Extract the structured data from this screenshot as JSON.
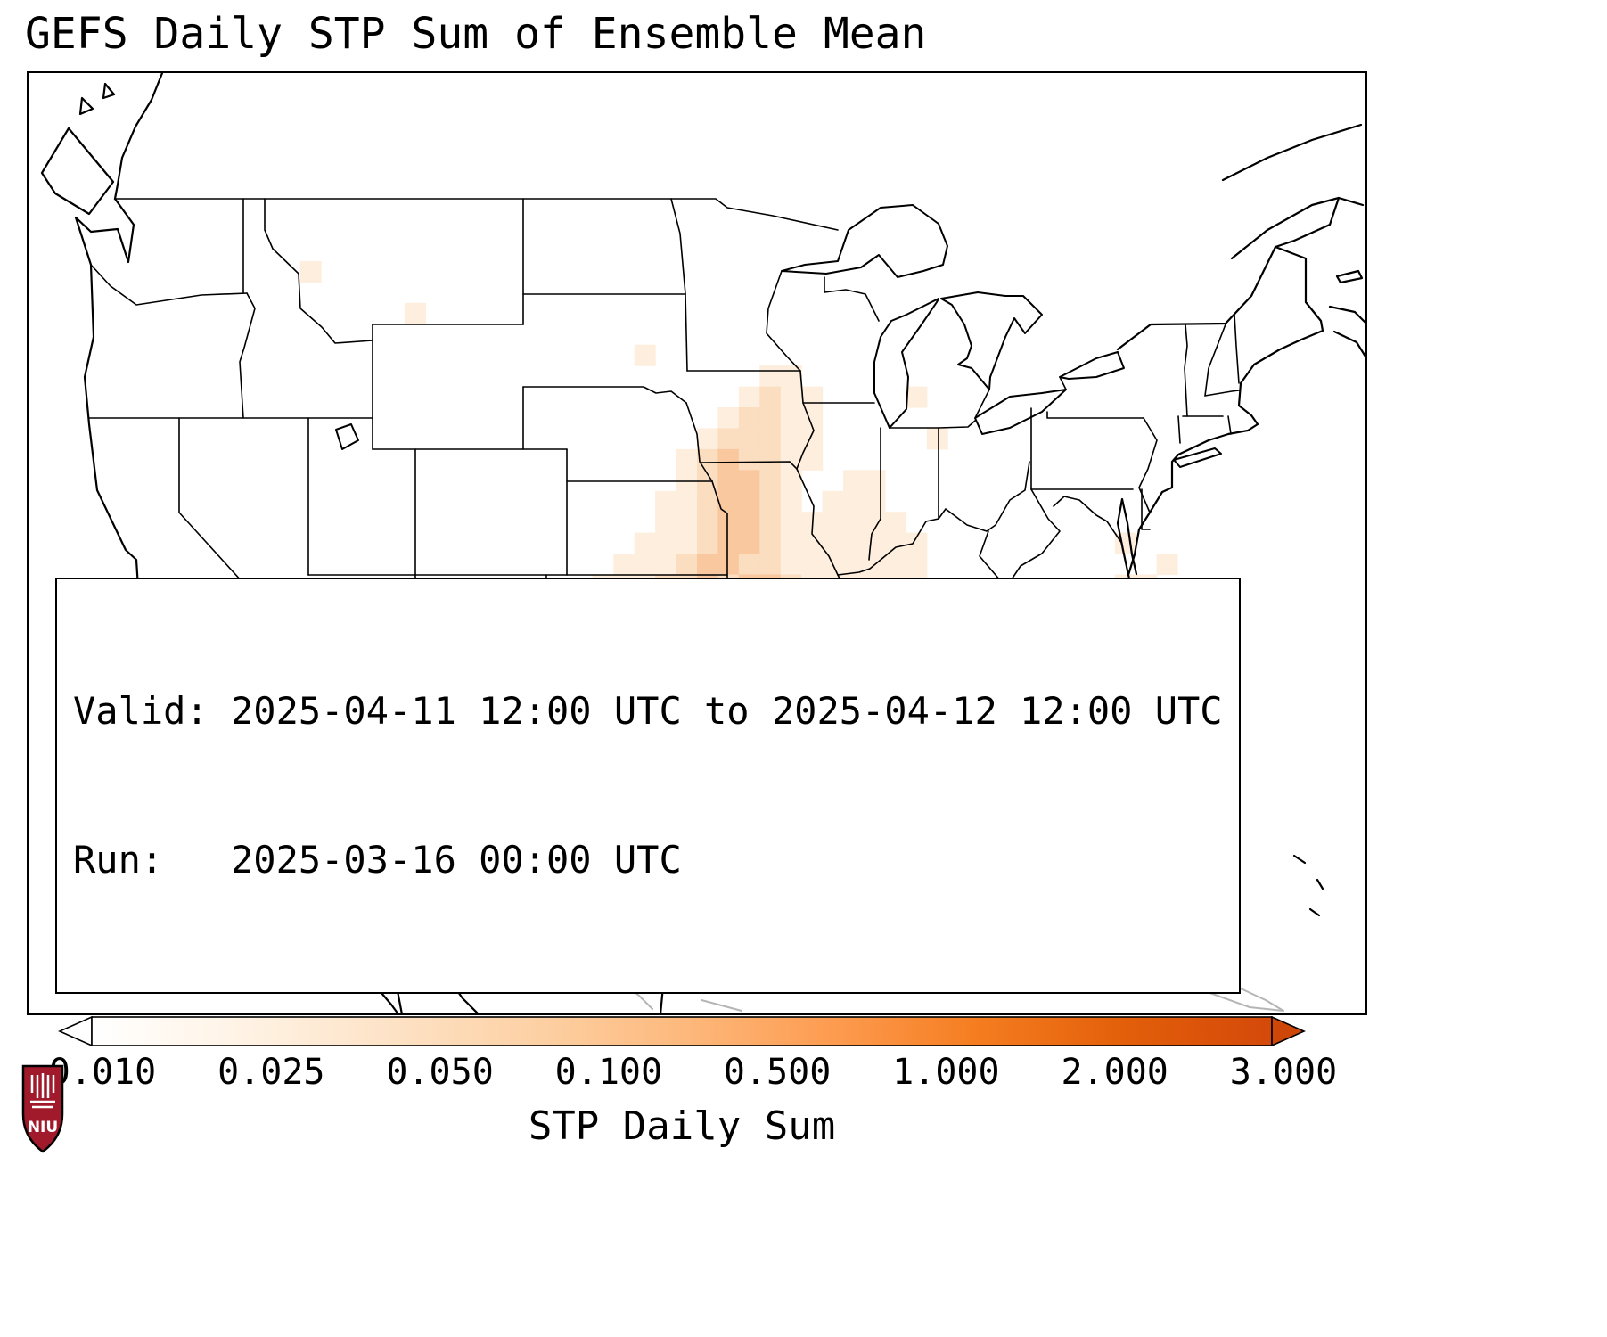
{
  "title": "GEFS Daily STP Sum of Ensemble Mean",
  "info_box": {
    "valid_line": "Valid: 2025-04-11 12:00 UTC to 2025-04-12 12:00 UTC",
    "run_line": "Run:   2025-03-16 00:00 UTC"
  },
  "colorbar": {
    "label": "STP Daily Sum",
    "ticks": [
      "0.010",
      "0.025",
      "0.050",
      "0.100",
      "0.500",
      "1.000",
      "2.000",
      "3.000"
    ],
    "gradient": [
      "#ffffff",
      "#fff3e5",
      "#fde3c7",
      "#fdd1a5",
      "#fdb97d",
      "#fd9c51",
      "#f57d20",
      "#e35f0a",
      "#d4490a"
    ],
    "under_color": "#ffffff",
    "over_color": "#cf4708"
  },
  "logo": {
    "text": "NIU",
    "shield_color": "#a11a2b"
  },
  "chart_data": {
    "type": "heatmap",
    "title": "GEFS Daily STP Sum of Ensemble Mean",
    "field_label": "STP Daily Sum",
    "valid": "2025-04-11 12:00 UTC to 2025-04-12 12:00 UTC",
    "run": "2025-03-16 00:00 UTC",
    "levels": [
      0.01,
      0.025,
      0.05,
      0.1,
      0.5,
      1.0,
      2.0,
      3.0
    ],
    "palette": [
      "#fdeede",
      "#fbddc0",
      "#fac89e",
      "#f8ae74",
      "#f5924a",
      "#ef7323",
      "#e25d0e"
    ],
    "region": "CONUS",
    "grid": {
      "cols": 64,
      "rows": 45,
      "rows_encoded": [
        "",
        "",
        "",
        "",
        "",
        "",
        "",
        "",
        "",
        ".............1",
        "",
        "..................1",
        "",
        ".............................1",
        "...................................11",
        "..................................1211....1",
        ".................................12211",
        "................................122211.....1",
        "...............................1232211",
        "...............................123321..11",
        "..............................1123321.111",
        "..............................112332111111",
        ".............................11123321111111.........1",
        "............................111233221111111...........1",
        "...........................1112232332111111.........11",
        "............................112234344322111............1",
        "............................1122344554322111",
        "............................1123345654432211............1",
        "............................12234455544332211........1...1",
        ".............................1233445544333221.....1",
        "..........................1123344544333322211..11....1",
        "..........................112233443333222111.11",
        "...........................11223344332222111111.....1",
        "...........................1122333433222211111......1",
        "............................122334433222221111......11",
        "............................12334322122211111...1",
        "............................123443221112211111.....1..1",
        ".............................1234432111121111111....1...1",
        ".............................124443211112111111.....1....1",
        ".............................13444321111211111...11....1",
        "..............................1343321111121111...1.....11",
        "..............................122211111112111....1...1",
        "................................11121111111.....1....1",
        "....................................111211....1",
        ""
      ]
    }
  }
}
